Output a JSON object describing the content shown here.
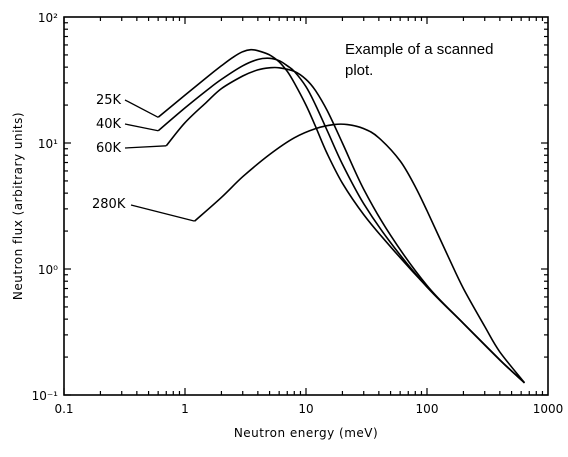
{
  "chart_data": {
    "type": "line",
    "title": "",
    "xlabel": "Neutron energy (meV)",
    "ylabel": "Neutron flux (arbitrary units)",
    "xscale": "log",
    "yscale": "log",
    "xlim": [
      0.1,
      1000
    ],
    "ylim": [
      0.1,
      100
    ],
    "x_ticks": [
      "0.1",
      "1",
      "10",
      "100",
      "1000"
    ],
    "y_ticks": [
      "10⁻¹",
      "10⁰",
      "10¹",
      "10²"
    ],
    "grid": false,
    "annotation": {
      "line1": "Example of a scanned",
      "line2": "plot."
    },
    "series": [
      {
        "name": "25K",
        "x": [
          0.6,
          1,
          1.5,
          2,
          2.5,
          3,
          3.5,
          4,
          5,
          6,
          7,
          8,
          10,
          12,
          15,
          20,
          30,
          50,
          100,
          200,
          400,
          640
        ],
        "y": [
          16,
          24,
          33,
          41,
          48,
          53,
          55,
          54,
          50,
          44,
          37,
          30,
          20,
          13.5,
          8.2,
          4.8,
          2.7,
          1.5,
          0.72,
          0.37,
          0.19,
          0.125
        ]
      },
      {
        "name": "40K",
        "x": [
          0.6,
          1,
          1.5,
          2,
          3,
          4,
          5,
          6,
          7,
          8,
          10,
          12,
          15,
          20,
          30,
          50,
          100,
          200,
          400,
          640
        ],
        "y": [
          12.5,
          19,
          26,
          32,
          41,
          46,
          47,
          45,
          41,
          37,
          28,
          20,
          12.5,
          6.8,
          3.3,
          1.62,
          0.72,
          0.37,
          0.19,
          0.125
        ]
      },
      {
        "name": "60K",
        "x": [
          0.7,
          1,
          1.5,
          2,
          3,
          4,
          5,
          6,
          8,
          10,
          12,
          15,
          20,
          30,
          50,
          100,
          200,
          400,
          640
        ],
        "y": [
          9.5,
          14.5,
          21,
          27,
          34,
          38,
          39.5,
          39.5,
          37,
          32,
          26,
          18,
          10,
          4.3,
          1.85,
          0.74,
          0.37,
          0.19,
          0.125
        ]
      },
      {
        "name": "280K",
        "x": [
          1.2,
          2,
          3,
          5,
          8,
          12,
          17,
          22,
          30,
          40,
          60,
          80,
          100,
          150,
          200,
          300,
          400,
          640
        ],
        "y": [
          2.4,
          3.7,
          5.4,
          8.1,
          11,
          13,
          14,
          14,
          13,
          11,
          7.2,
          4.5,
          2.9,
          1.25,
          0.7,
          0.35,
          0.22,
          0.125
        ]
      }
    ]
  }
}
